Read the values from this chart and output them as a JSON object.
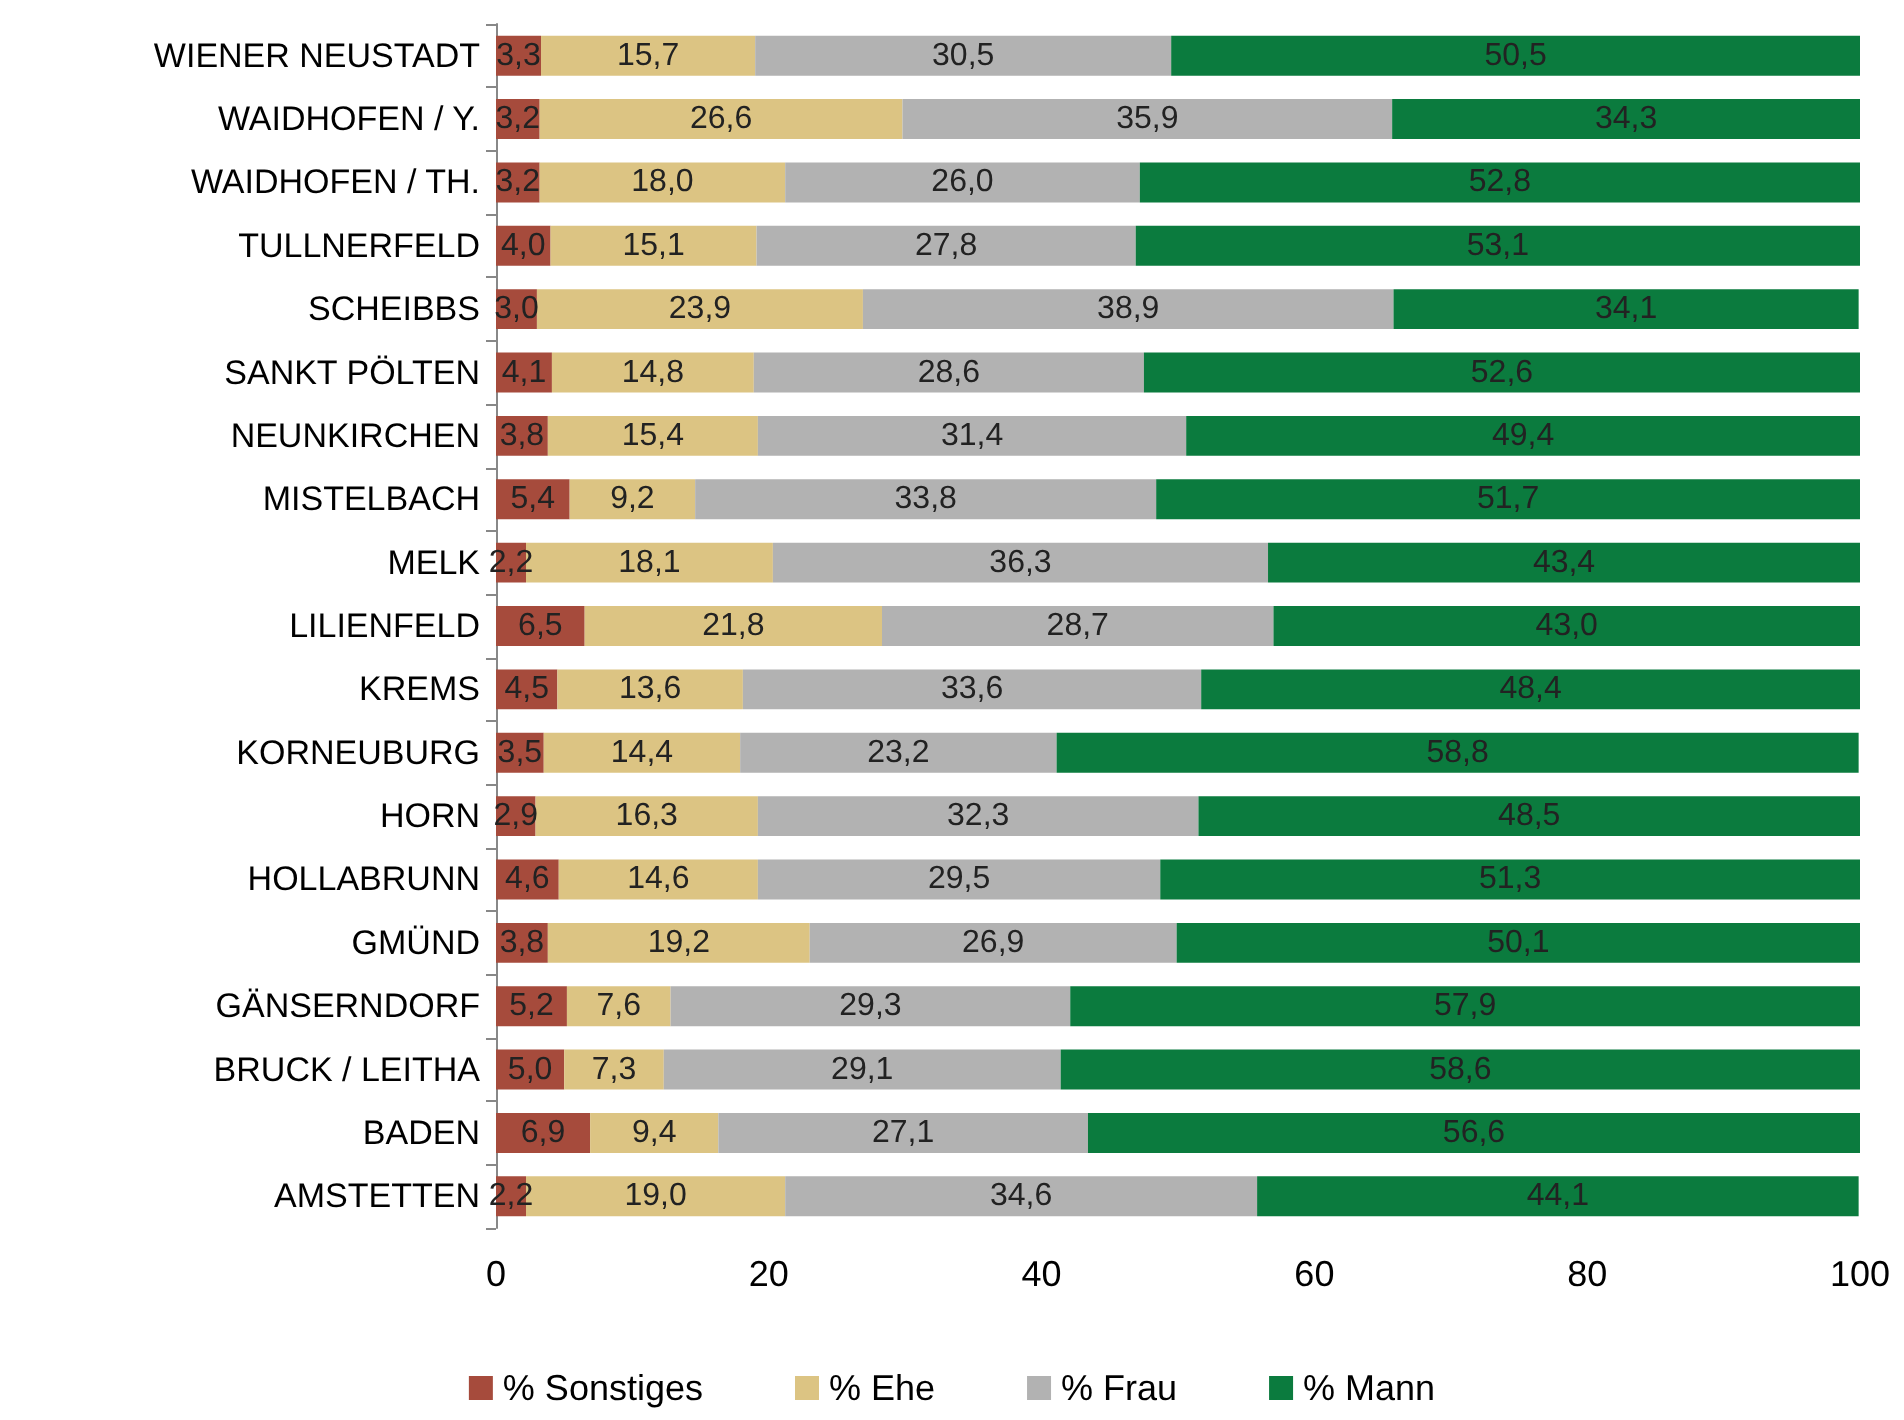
{
  "chart_data": {
    "type": "bar",
    "orientation": "horizontal",
    "stacked": true,
    "categories": [
      "WIENER NEUSTADT",
      "WAIDHOFEN / Y.",
      "WAIDHOFEN / TH.",
      "TULLNERFELD",
      "SCHEIBBS",
      "SANKT PÖLTEN",
      "NEUNKIRCHEN",
      "MISTELBACH",
      "MELK",
      "LILIENFELD",
      "KREMS",
      "KORNEUBURG",
      "HORN",
      "HOLLABRUNN",
      "GMÜND",
      "GÄNSERNDORF",
      "BRUCK / LEITHA",
      "BADEN",
      "AMSTETTEN"
    ],
    "series": [
      {
        "name": "% Sonstiges",
        "color": "#a64b3c",
        "values": [
          3.3,
          3.2,
          3.2,
          4.0,
          3.0,
          4.1,
          3.8,
          5.4,
          2.2,
          6.5,
          4.5,
          3.5,
          2.9,
          4.6,
          3.8,
          5.2,
          5.0,
          6.9,
          2.2
        ],
        "value_labels": [
          "3,3",
          "3,2",
          "3,2",
          "4,0",
          "3,0",
          "4,1",
          "3,8",
          "5,4",
          "2,2",
          "6,5",
          "4,5",
          "3,5",
          "2,9",
          "4,6",
          "3,8",
          "5,2",
          "5,0",
          "6,9",
          "2,2"
        ]
      },
      {
        "name": "% Ehe",
        "color": "#dcc483",
        "values": [
          15.7,
          26.6,
          18.0,
          15.1,
          23.9,
          14.8,
          15.4,
          9.2,
          18.1,
          21.8,
          13.6,
          14.4,
          16.3,
          14.6,
          19.2,
          7.6,
          7.3,
          9.4,
          19.0
        ],
        "value_labels": [
          "15,7",
          "26,6",
          "18,0",
          "15,1",
          "23,9",
          "14,8",
          "15,4",
          "9,2",
          "18,1",
          "21,8",
          "13,6",
          "14,4",
          "16,3",
          "14,6",
          "19,2",
          "7,6",
          "7,3",
          "9,4",
          "19,0"
        ]
      },
      {
        "name": "% Frau",
        "color": "#b2b2b2",
        "values": [
          30.5,
          35.9,
          26.0,
          27.8,
          38.9,
          28.6,
          31.4,
          33.8,
          36.3,
          28.7,
          33.6,
          23.2,
          32.3,
          29.5,
          26.9,
          29.3,
          29.1,
          27.1,
          34.6
        ],
        "value_labels": [
          "30,5",
          "35,9",
          "26,0",
          "27,8",
          "38,9",
          "28,6",
          "31,4",
          "33,8",
          "36,3",
          "28,7",
          "33,6",
          "23,2",
          "32,3",
          "29,5",
          "26,9",
          "29,3",
          "29,1",
          "27,1",
          "34,6"
        ]
      },
      {
        "name": "% Mann",
        "color": "#0b7b3e",
        "values": [
          50.5,
          34.3,
          52.8,
          53.1,
          34.1,
          52.6,
          49.4,
          51.7,
          43.4,
          43.0,
          48.4,
          58.8,
          48.5,
          51.3,
          50.1,
          57.9,
          58.6,
          56.6,
          44.1
        ],
        "value_labels": [
          "50,5",
          "34,3",
          "52,8",
          "53,1",
          "34,1",
          "52,6",
          "49,4",
          "51,7",
          "43,4",
          "43,0",
          "48,4",
          "58,8",
          "48,5",
          "51,3",
          "50,1",
          "57,9",
          "58,6",
          "56,6",
          "44,1"
        ]
      }
    ],
    "xlim": [
      0,
      100
    ],
    "xticks": [
      0,
      20,
      40,
      60,
      80,
      100
    ],
    "grid": false,
    "legend": "bottom"
  }
}
